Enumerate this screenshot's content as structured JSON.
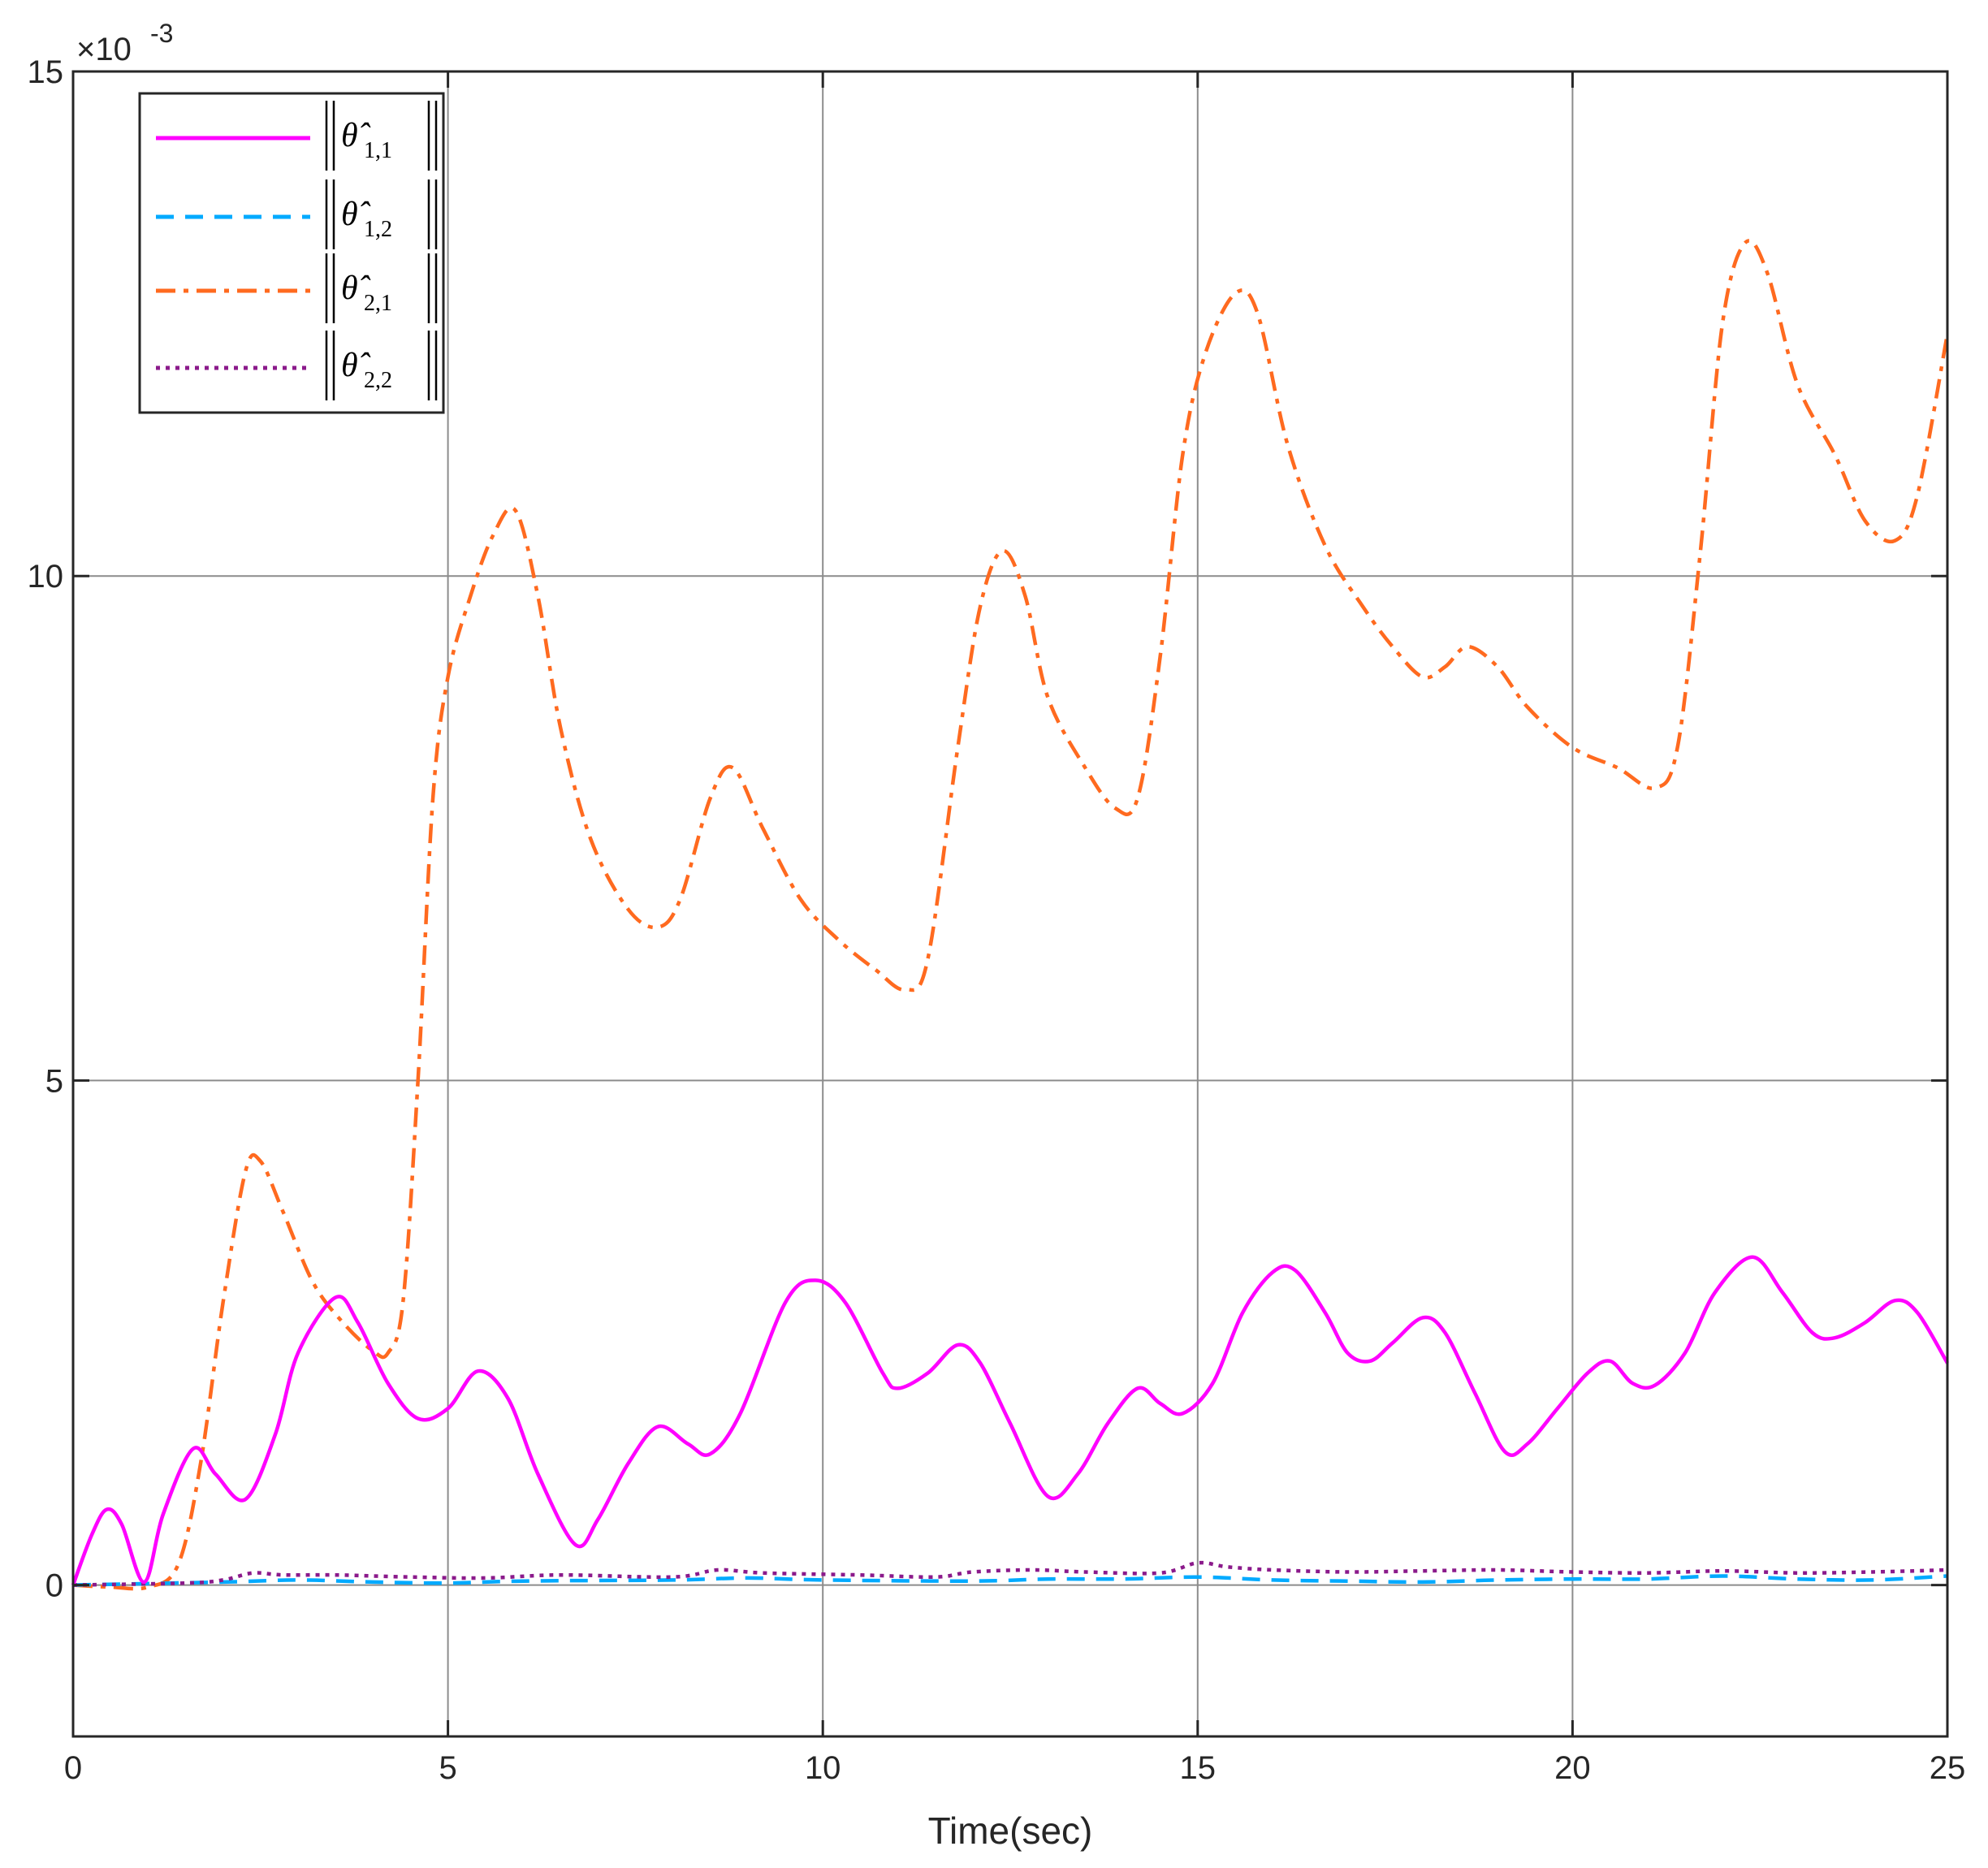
{
  "chart_data": {
    "type": "line",
    "title": "",
    "xlabel": "Time(sec)",
    "ylabel": "",
    "xlim": [
      0,
      25
    ],
    "ylim": [
      -0.0015,
      0.015
    ],
    "y_multiplier_label": "×10",
    "y_multiplier_exponent": "-3",
    "x_ticks": [
      "0",
      "5",
      "10",
      "15",
      "20",
      "25"
    ],
    "x_tick_values": [
      0,
      5,
      10,
      15,
      20,
      25
    ],
    "y_ticks": [
      "0",
      "5",
      "10",
      "15"
    ],
    "y_tick_values": [
      0,
      0.005,
      0.01,
      0.015
    ],
    "grid": true,
    "legend_position": "top-left",
    "series": [
      {
        "name": "||θ̂_{1,1}||",
        "label_main": "θ̂",
        "label_sub": "1,1",
        "color": "#ff00ff",
        "style": "solid",
        "points": [
          [
            0,
            0
          ],
          [
            0.25,
            0.0005
          ],
          [
            0.45,
            0.00075
          ],
          [
            0.65,
            0.0006
          ],
          [
            0.95,
            3e-05
          ],
          [
            1.2,
            0.0007
          ],
          [
            1.6,
            0.00135
          ],
          [
            1.9,
            0.0011
          ],
          [
            2.3,
            0.00085
          ],
          [
            2.7,
            0.0015
          ],
          [
            3.0,
            0.0023
          ],
          [
            3.5,
            0.00285
          ],
          [
            3.8,
            0.0026
          ],
          [
            4.2,
            0.002
          ],
          [
            4.6,
            0.00165
          ],
          [
            5.0,
            0.00175
          ],
          [
            5.4,
            0.00212
          ],
          [
            5.8,
            0.00185
          ],
          [
            6.2,
            0.0011
          ],
          [
            6.7,
            0.0004
          ],
          [
            7.0,
            0.00065
          ],
          [
            7.4,
            0.0012
          ],
          [
            7.8,
            0.00157
          ],
          [
            8.2,
            0.0014
          ],
          [
            8.5,
            0.0013
          ],
          [
            8.9,
            0.0017
          ],
          [
            9.5,
            0.0028
          ],
          [
            9.9,
            0.00302
          ],
          [
            10.3,
            0.0028
          ],
          [
            10.8,
            0.0021
          ],
          [
            11.0,
            0.00195
          ],
          [
            11.4,
            0.0021
          ],
          [
            11.8,
            0.00238
          ],
          [
            12.1,
            0.0022
          ],
          [
            12.5,
            0.0016
          ],
          [
            13.0,
            0.00088
          ],
          [
            13.4,
            0.0011
          ],
          [
            13.8,
            0.0016
          ],
          [
            14.2,
            0.00195
          ],
          [
            14.5,
            0.0018
          ],
          [
            14.8,
            0.0017
          ],
          [
            15.2,
            0.002
          ],
          [
            15.6,
            0.0027
          ],
          [
            16.0,
            0.0031
          ],
          [
            16.3,
            0.00312
          ],
          [
            16.7,
            0.0027
          ],
          [
            17.0,
            0.0023
          ],
          [
            17.3,
            0.00222
          ],
          [
            17.6,
            0.0024
          ],
          [
            18.0,
            0.00265
          ],
          [
            18.3,
            0.0025
          ],
          [
            18.7,
            0.0019
          ],
          [
            19.1,
            0.00132
          ],
          [
            19.4,
            0.0014
          ],
          [
            19.8,
            0.00175
          ],
          [
            20.2,
            0.0021
          ],
          [
            20.5,
            0.00222
          ],
          [
            20.8,
            0.002
          ],
          [
            21.1,
            0.00198
          ],
          [
            21.5,
            0.0023
          ],
          [
            21.9,
            0.0029
          ],
          [
            22.4,
            0.00325
          ],
          [
            22.8,
            0.0029
          ],
          [
            23.2,
            0.0025
          ],
          [
            23.5,
            0.00245
          ],
          [
            23.9,
            0.0026
          ],
          [
            24.3,
            0.00282
          ],
          [
            24.6,
            0.0027
          ],
          [
            25.0,
            0.0022
          ]
        ]
      },
      {
        "name": "||θ̂_{1,2}||",
        "label_main": "θ̂",
        "label_sub": "1,2",
        "color": "#00aaff",
        "style": "dashed",
        "points": [
          [
            0,
            0
          ],
          [
            2,
            3e-05
          ],
          [
            3,
            5e-05
          ],
          [
            4,
            3e-05
          ],
          [
            5,
            2e-05
          ],
          [
            6,
            4e-05
          ],
          [
            8,
            5e-05
          ],
          [
            9,
            7e-05
          ],
          [
            10,
            5e-05
          ],
          [
            12,
            4e-05
          ],
          [
            13,
            6e-05
          ],
          [
            14,
            6e-05
          ],
          [
            15,
            8e-05
          ],
          [
            16,
            5e-05
          ],
          [
            17,
            4e-05
          ],
          [
            18,
            3e-05
          ],
          [
            19,
            5e-05
          ],
          [
            20,
            6e-05
          ],
          [
            21,
            6e-05
          ],
          [
            22,
            9e-05
          ],
          [
            23,
            6e-05
          ],
          [
            24,
            5e-05
          ],
          [
            25,
            9e-05
          ]
        ]
      },
      {
        "name": "||θ̂_{2,1}||",
        "label_main": "θ̂",
        "label_sub": "2,1",
        "color": "#ff6a1f",
        "style": "dashdot",
        "points": [
          [
            0,
            0
          ],
          [
            0.5,
            -2e-05
          ],
          [
            1.0,
            -2e-05
          ],
          [
            1.4,
            0.0002
          ],
          [
            1.7,
            0.0012
          ],
          [
            2.0,
            0.0028
          ],
          [
            2.3,
            0.0041
          ],
          [
            2.5,
            0.0042
          ],
          [
            2.8,
            0.0037
          ],
          [
            3.2,
            0.003
          ],
          [
            3.6,
            0.0026
          ],
          [
            4.0,
            0.00232
          ],
          [
            4.2,
            0.0023
          ],
          [
            4.4,
            0.0028
          ],
          [
            4.6,
            0.005
          ],
          [
            4.8,
            0.0078
          ],
          [
            5.0,
            0.009
          ],
          [
            5.3,
            0.0098
          ],
          [
            5.6,
            0.0104
          ],
          [
            5.9,
            0.01065
          ],
          [
            6.2,
            0.0098
          ],
          [
            6.5,
            0.0085
          ],
          [
            6.9,
            0.0074
          ],
          [
            7.4,
            0.0067
          ],
          [
            7.8,
            0.00652
          ],
          [
            8.1,
            0.0068
          ],
          [
            8.5,
            0.0078
          ],
          [
            8.8,
            0.0081
          ],
          [
            9.2,
            0.0075
          ],
          [
            9.7,
            0.0068
          ],
          [
            10.2,
            0.0064
          ],
          [
            10.7,
            0.0061
          ],
          [
            11.1,
            0.0059
          ],
          [
            11.4,
            0.0062
          ],
          [
            11.8,
            0.0083
          ],
          [
            12.1,
            0.0097
          ],
          [
            12.4,
            0.01025
          ],
          [
            12.7,
            0.0098
          ],
          [
            13.0,
            0.0088
          ],
          [
            13.5,
            0.0081
          ],
          [
            13.9,
            0.0077
          ],
          [
            14.2,
            0.0078
          ],
          [
            14.5,
            0.0092
          ],
          [
            14.8,
            0.0112
          ],
          [
            15.1,
            0.0122
          ],
          [
            15.5,
            0.0128
          ],
          [
            15.8,
            0.0126
          ],
          [
            16.2,
            0.0113
          ],
          [
            16.7,
            0.0103
          ],
          [
            17.2,
            0.0097
          ],
          [
            17.6,
            0.0093
          ],
          [
            18.0,
            0.009
          ],
          [
            18.3,
            0.0091
          ],
          [
            18.6,
            0.0093
          ],
          [
            19.0,
            0.0091
          ],
          [
            19.4,
            0.0087
          ],
          [
            20.0,
            0.0083
          ],
          [
            20.6,
            0.0081
          ],
          [
            21.1,
            0.0079
          ],
          [
            21.4,
            0.0083
          ],
          [
            21.7,
            0.0102
          ],
          [
            22.0,
            0.0125
          ],
          [
            22.3,
            0.0133
          ],
          [
            22.6,
            0.013
          ],
          [
            23.0,
            0.0119
          ],
          [
            23.5,
            0.0112
          ],
          [
            23.9,
            0.01055
          ],
          [
            24.3,
            0.01035
          ],
          [
            24.6,
            0.0108
          ],
          [
            25.0,
            0.0124
          ]
        ]
      },
      {
        "name": "||θ̂_{2,2}||",
        "label_main": "θ̂",
        "label_sub": "2,2",
        "color": "#8b1a8b",
        "style": "dotted",
        "points": [
          [
            0,
            0
          ],
          [
            1.5,
            2e-05
          ],
          [
            2.0,
            5e-05
          ],
          [
            2.4,
            0.00012
          ],
          [
            2.8,
            0.0001
          ],
          [
            3.5,
            0.0001
          ],
          [
            4.5,
            8e-05
          ],
          [
            5.5,
            7e-05
          ],
          [
            6.5,
            0.0001
          ],
          [
            8.0,
            8e-05
          ],
          [
            8.6,
            0.00015
          ],
          [
            9.2,
            0.00012
          ],
          [
            10.5,
            0.0001
          ],
          [
            11.5,
            8e-05
          ],
          [
            12.0,
            0.00013
          ],
          [
            12.8,
            0.00015
          ],
          [
            13.5,
            0.00013
          ],
          [
            14.5,
            0.00012
          ],
          [
            15.0,
            0.00022
          ],
          [
            15.4,
            0.00018
          ],
          [
            16.0,
            0.00015
          ],
          [
            17.0,
            0.00013
          ],
          [
            18.0,
            0.00014
          ],
          [
            19.0,
            0.00015
          ],
          [
            20.0,
            0.00013
          ],
          [
            21.0,
            0.00012
          ],
          [
            22.0,
            0.00014
          ],
          [
            23.0,
            0.00012
          ],
          [
            24.0,
            0.00013
          ],
          [
            25.0,
            0.00015
          ]
        ]
      }
    ]
  }
}
